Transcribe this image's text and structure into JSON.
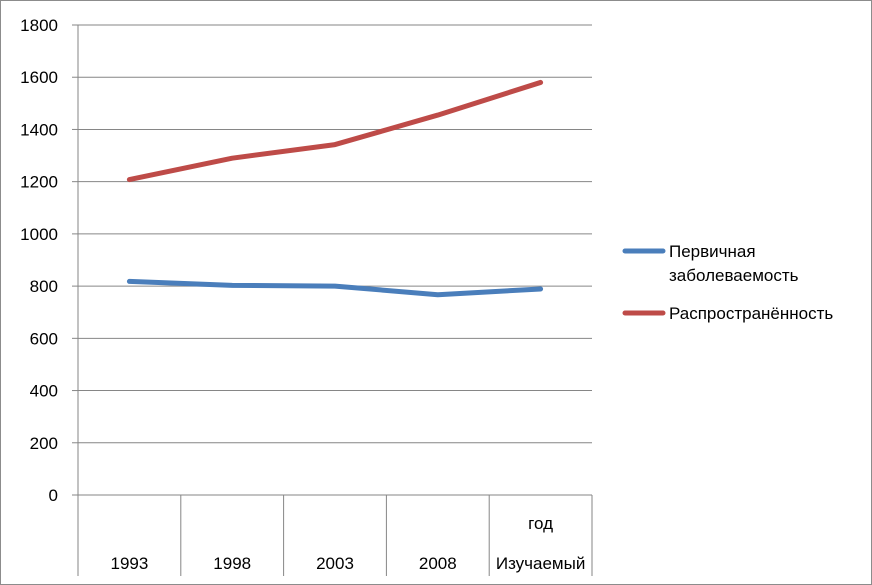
{
  "chart_data": {
    "type": "line",
    "categories": [
      "1993",
      "1998",
      "2003",
      "2008",
      "Изучаемый"
    ],
    "category_line2": [
      "",
      "",
      "",
      "",
      "год"
    ],
    "series": [
      {
        "name": "Первичная заболеваемость",
        "name_lines": [
          "Первичная",
          "заболеваемость"
        ],
        "color": "#4a7ebb",
        "values": [
          818,
          803,
          800,
          767,
          789
        ]
      },
      {
        "name": "Распространённость",
        "name_lines": [
          "Распространённость"
        ],
        "color": "#be4b48",
        "values": [
          1208,
          1290,
          1342,
          1455,
          1580
        ]
      }
    ],
    "ylim": [
      0,
      1800
    ],
    "yticks": [
      "0",
      "200",
      "400",
      "600",
      "800",
      "1000",
      "1200",
      "1400",
      "1600",
      "1800"
    ],
    "grid": true,
    "legend_position": "right"
  }
}
